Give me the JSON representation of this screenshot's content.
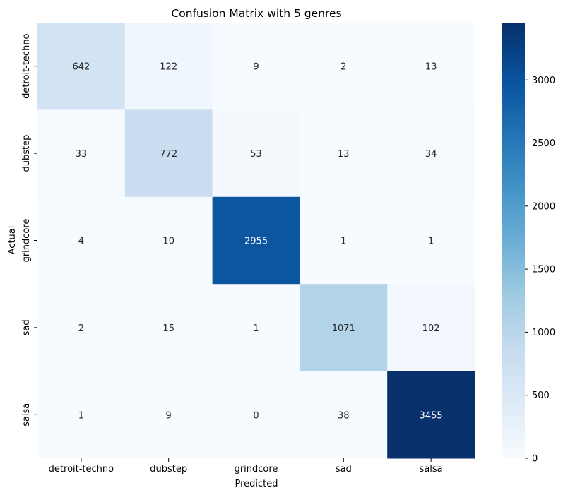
{
  "chart_data": {
    "type": "heatmap",
    "title": "Confusion Matrix with 5 genres",
    "xlabel": "Predicted",
    "ylabel": "Actual",
    "x_categories": [
      "detroit-techno",
      "dubstep",
      "grindcore",
      "sad",
      "salsa"
    ],
    "y_categories": [
      "detroit-techno",
      "dubstep",
      "grindcore",
      "sad",
      "salsa"
    ],
    "values": [
      [
        642,
        122,
        9,
        2,
        13
      ],
      [
        33,
        772,
        53,
        13,
        34
      ],
      [
        4,
        10,
        2955,
        1,
        1
      ],
      [
        2,
        15,
        1,
        1071,
        102
      ],
      [
        1,
        9,
        0,
        38,
        3455
      ]
    ],
    "colorbar": {
      "min": 0,
      "max": 3455,
      "ticks": [
        0,
        500,
        1000,
        1500,
        2000,
        2500,
        3000
      ]
    },
    "colormap": "Blues",
    "grid": false
  }
}
